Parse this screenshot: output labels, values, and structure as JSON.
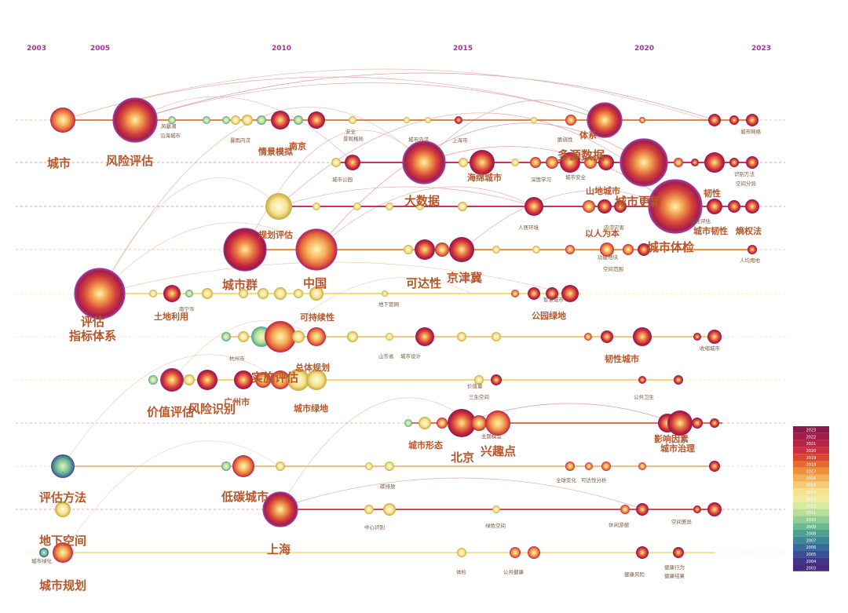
{
  "years": [
    "2003",
    "2005",
    "2010",
    "2015",
    "2020",
    "2023"
  ],
  "clusters": [
    {
      "labels": [
        {
          "t": "城市",
          "s": "big"
        },
        {
          "t": "风险评估",
          "s": "big"
        },
        {
          "t": "情景模拟",
          "s": "mid"
        },
        {
          "t": "南京",
          "s": "mid"
        },
        {
          "t": "体系",
          "s": "mid"
        },
        {
          "t": "风暴潮",
          "s": "sm"
        },
        {
          "t": "沿海城市",
          "s": "sm"
        },
        {
          "t": "暴雨内涝",
          "s": "sm"
        },
        {
          "t": "安全",
          "s": "sm"
        },
        {
          "t": "景观格局",
          "s": "sm"
        },
        {
          "t": "城市内涝",
          "s": "sm"
        },
        {
          "t": "脆弱性",
          "s": "sm"
        },
        {
          "t": "城市网络",
          "s": "sm"
        }
      ]
    },
    {
      "labels": [
        {
          "t": "多源数据",
          "s": "big"
        },
        {
          "t": "海绵城市",
          "s": "mid"
        },
        {
          "t": "城市公园",
          "s": "sm"
        },
        {
          "t": "上海市",
          "s": "sm"
        },
        {
          "t": "城市安全",
          "s": "sm"
        },
        {
          "t": "深度学习",
          "s": "sm"
        },
        {
          "t": "识别方法",
          "s": "sm"
        },
        {
          "t": "空间分异",
          "s": "sm"
        }
      ]
    },
    {
      "labels": [
        {
          "t": "大数据",
          "s": "big"
        },
        {
          "t": "城市更新",
          "s": "big"
        },
        {
          "t": "山地城市",
          "s": "mid"
        },
        {
          "t": "韧性",
          "s": "mid"
        },
        {
          "t": "城市韧性",
          "s": "mid"
        },
        {
          "t": "熵权法",
          "s": "mid"
        },
        {
          "t": "人居环境",
          "s": "sm"
        },
        {
          "t": "内涝灾害",
          "s": "sm"
        },
        {
          "t": "韧性评估",
          "s": "sm"
        }
      ]
    },
    {
      "labels": [
        {
          "t": "规划评估",
          "s": "mid"
        },
        {
          "t": "城市体检",
          "s": "big"
        },
        {
          "t": "以人为本",
          "s": "mid"
        },
        {
          "t": "空间范围",
          "s": "sm"
        },
        {
          "t": "功能地块",
          "s": "sm"
        },
        {
          "t": "人均用地",
          "s": "sm"
        }
      ]
    },
    {
      "labels": [
        {
          "t": "城市群",
          "s": "big"
        },
        {
          "t": "中国",
          "s": "big"
        },
        {
          "t": "可达性",
          "s": "big"
        },
        {
          "t": "京津冀",
          "s": "big"
        },
        {
          "t": "评估",
          "s": "big"
        },
        {
          "t": "指标体系",
          "s": "big"
        },
        {
          "t": "土地利用",
          "s": "mid"
        },
        {
          "t": "可持续性",
          "s": "mid"
        },
        {
          "t": "公园绿地",
          "s": "mid"
        },
        {
          "t": "南宁市",
          "s": "sm"
        },
        {
          "t": "地下管网",
          "s": "sm"
        },
        {
          "t": "智慧城市",
          "s": "sm"
        }
      ]
    },
    {
      "labels": [
        {
          "t": "总体规划",
          "s": "mid"
        },
        {
          "t": "城市设计",
          "s": "sm"
        },
        {
          "t": "山东省",
          "s": "sm"
        },
        {
          "t": "韧性城市",
          "s": "mid"
        },
        {
          "t": "杭州市",
          "s": "sm"
        },
        {
          "t": "收缩城市",
          "s": "sm"
        }
      ]
    },
    {
      "labels": [
        {
          "t": "实施评估",
          "s": "big"
        },
        {
          "t": "价值评估",
          "s": "big"
        },
        {
          "t": "风险识别",
          "s": "big"
        },
        {
          "t": "广州市",
          "s": "mid"
        },
        {
          "t": "城市绿地",
          "s": "mid"
        },
        {
          "t": "价值量",
          "s": "sm"
        },
        {
          "t": "三生空间",
          "s": "sm"
        },
        {
          "t": "公共卫生",
          "s": "sm"
        }
      ]
    },
    {
      "labels": [
        {
          "t": "北京",
          "s": "big"
        },
        {
          "t": "兴趣点",
          "s": "big"
        },
        {
          "t": "城市形态",
          "s": "mid"
        },
        {
          "t": "影响因素",
          "s": "mid"
        },
        {
          "t": "城市治理",
          "s": "mid"
        },
        {
          "t": "主题模型",
          "s": "sm"
        }
      ]
    },
    {
      "labels": [
        {
          "t": "评估方法",
          "s": "big"
        },
        {
          "t": "低碳城市",
          "s": "big"
        },
        {
          "t": "碳排放",
          "s": "sm"
        },
        {
          "t": "全球变化",
          "s": "sm"
        },
        {
          "t": "可达性分析",
          "s": "sm"
        }
      ]
    },
    {
      "labels": [
        {
          "t": "地下空间",
          "s": "big"
        },
        {
          "t": "上海",
          "s": "big"
        },
        {
          "t": "中心识别",
          "s": "sm"
        },
        {
          "t": "绿色空间",
          "s": "sm"
        },
        {
          "t": "休闲游憩",
          "s": "sm"
        },
        {
          "t": "空间差异",
          "s": "sm"
        }
      ]
    },
    {
      "labels": [
        {
          "t": "城市规划",
          "s": "big"
        },
        {
          "t": "城市绿化",
          "s": "sm"
        },
        {
          "t": "体检",
          "s": "sm"
        },
        {
          "t": "公共健康",
          "s": "sm"
        },
        {
          "t": "健康风险",
          "s": "sm"
        },
        {
          "t": "健康行为",
          "s": "sm"
        },
        {
          "t": "健康结果",
          "s": "sm"
        }
      ]
    }
  ],
  "legend_years": [
    "2023",
    "2022",
    "2021",
    "2020",
    "2019",
    "2018",
    "2017",
    "2016",
    "2015",
    "2014",
    "2013",
    "2012",
    "2011",
    "2010",
    "2009",
    "2008",
    "2007",
    "2006",
    "2005",
    "2004",
    "2003"
  ],
  "legend_colors": [
    "#8c1a4a",
    "#a11e4b",
    "#b8234a",
    "#cc3040",
    "#d94733",
    "#e66a2f",
    "#ee8f3a",
    "#f3b05a",
    "#f6cb74",
    "#f5e08c",
    "#eeeaa0",
    "#d8e9a0",
    "#b9de98",
    "#92ce94",
    "#6cba93",
    "#4fa093",
    "#3f8697",
    "#376b9a",
    "#3a4f95",
    "#42348a",
    "#4a2a7e"
  ]
}
